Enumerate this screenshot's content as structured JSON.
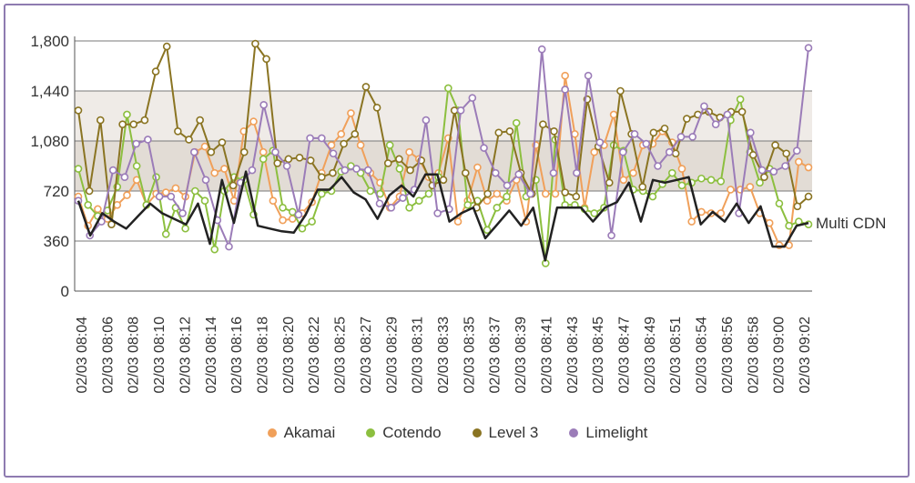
{
  "chart_data": {
    "type": "line",
    "title": "",
    "xlabel": "",
    "ylabel": "",
    "ylim": [
      0,
      1800
    ],
    "yticks": [
      0,
      360,
      720,
      "1,080",
      "1,440",
      "1,800"
    ],
    "ytick_values": [
      0,
      360,
      720,
      1080,
      1440,
      1800
    ],
    "xtick_labels": [
      "02/03 08:04",
      "02/03 08:06",
      "02/03 08:08",
      "02/03 08:10",
      "02/03 08:12",
      "02/03 08:14",
      "02/03 08:16",
      "02/03 08:18",
      "02/03 08:20",
      "02/03 08:22",
      "02/03 08:25",
      "02/03 08:27",
      "02/03 08:29",
      "02/03 08:31",
      "02/03 08:33",
      "02/03 08:35",
      "02/03 08:37",
      "02/03 08:39",
      "02/03 08:41",
      "02/03 08:43",
      "02/03 08:45",
      "02/03 08:47",
      "02/03 08:49",
      "02/03 08:51",
      "02/03 08:54",
      "02/03 08:56",
      "02/03 08:58",
      "02/03 09:00",
      "02/03 09:02"
    ],
    "bands": [
      [
        360,
        720,
        "#ffffff"
      ],
      [
        720,
        1080,
        "#e2dcd5"
      ],
      [
        1080,
        1440,
        "#efebe7"
      ],
      [
        1440,
        1800,
        "#ffffff"
      ]
    ],
    "grid": true,
    "legend_position": "bottom",
    "series": [
      {
        "name": "Akamai",
        "color": "#f0a05a",
        "marker": true,
        "values": [
          680,
          470,
          590,
          520,
          620,
          690,
          800,
          620,
          700,
          710,
          740,
          680,
          1000,
          1040,
          850,
          880,
          650,
          1150,
          1220,
          1000,
          650,
          510,
          520,
          560,
          640,
          850,
          1050,
          1130,
          1280,
          1050,
          850,
          780,
          600,
          680,
          1000,
          950,
          820,
          850,
          1100,
          500,
          650,
          890,
          650,
          700,
          650,
          800,
          500,
          1050,
          700,
          700,
          1550,
          1130,
          600,
          1000,
          1050,
          1270,
          800,
          850,
          1050,
          1060,
          1150,
          1070,
          880,
          500,
          570,
          560,
          560,
          730,
          730,
          750,
          560,
          490,
          330,
          330,
          930,
          890
        ]
      },
      {
        "name": "Cotendo",
        "color": "#8cbf3f",
        "marker": true,
        "values": [
          880,
          620,
          540,
          580,
          750,
          1270,
          900,
          620,
          820,
          410,
          600,
          450,
          720,
          650,
          300,
          720,
          820,
          800,
          550,
          950,
          1010,
          600,
          570,
          450,
          500,
          700,
          720,
          860,
          900,
          850,
          720,
          700,
          1050,
          880,
          600,
          650,
          700,
          820,
          1460,
          1300,
          620,
          650,
          440,
          600,
          680,
          1210,
          680,
          800,
          200,
          1090,
          620,
          620,
          590,
          560,
          600,
          1050,
          1010,
          730,
          720,
          680,
          770,
          850,
          760,
          780,
          810,
          800,
          790,
          1230,
          1380,
          1000,
          780,
          880,
          630,
          470,
          500,
          480
        ]
      },
      {
        "name": "Level 3",
        "color": "#8a7422",
        "marker": true,
        "values": [
          1300,
          720,
          1230,
          480,
          1200,
          1200,
          1230,
          1580,
          1760,
          1150,
          1090,
          1230,
          1000,
          1070,
          760,
          1000,
          1780,
          1670,
          920,
          950,
          960,
          940,
          820,
          850,
          1060,
          1130,
          1470,
          1320,
          920,
          950,
          870,
          940,
          760,
          800,
          1300,
          850,
          600,
          700,
          1140,
          1150,
          850,
          700,
          1200,
          1150,
          710,
          680,
          1380,
          1040,
          780,
          1440,
          1130,
          750,
          1140,
          1170,
          990,
          1240,
          1270,
          1290,
          1250,
          1290,
          1290,
          980,
          820,
          1050,
          990,
          610,
          680
        ]
      },
      {
        "name": "Limelight",
        "color": "#9b7cb8",
        "marker": true,
        "values": [
          650,
          400,
          500,
          870,
          820,
          1060,
          1090,
          680,
          680,
          560,
          1000,
          800,
          510,
          320,
          780,
          870,
          1340,
          1000,
          900,
          550,
          1100,
          1100,
          990,
          870,
          880,
          870,
          630,
          600,
          670,
          730,
          1230,
          560,
          590,
          1300,
          1390,
          1030,
          850,
          760,
          840,
          700,
          1740,
          850,
          1450,
          850,
          1550,
          1070,
          400,
          1000,
          1130,
          1060,
          900,
          1000,
          1110,
          1110,
          1330,
          1200,
          1270,
          560,
          1140,
          870,
          860,
          900,
          1010,
          1750
        ]
      },
      {
        "name": "Multi CDN",
        "color": "#222222",
        "marker": false,
        "direct_label": true,
        "values": [
          650,
          400,
          560,
          500,
          450,
          540,
          630,
          560,
          520,
          480,
          630,
          340,
          800,
          490,
          860,
          470,
          450,
          430,
          420,
          550,
          730,
          730,
          820,
          710,
          660,
          520,
          690,
          760,
          680,
          840,
          840,
          500,
          560,
          600,
          380,
          480,
          580,
          470,
          600,
          220,
          600,
          600,
          600,
          500,
          600,
          640,
          780,
          500,
          800,
          780,
          800,
          820,
          480,
          570,
          500,
          630,
          490,
          610,
          320,
          320,
          470,
          490
        ]
      }
    ]
  }
}
